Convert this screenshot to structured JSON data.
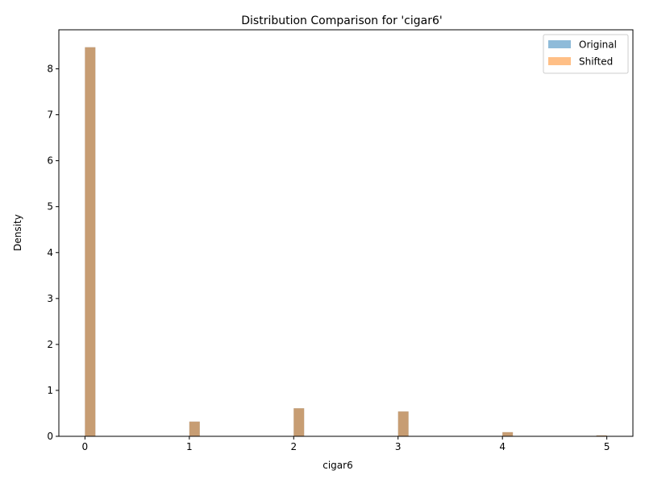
{
  "chart_data": {
    "type": "bar",
    "title": "Distribution Comparison for 'cigar6'",
    "xlabel": "cigar6",
    "ylabel": "Density",
    "xlim": [
      -0.25,
      5.25
    ],
    "ylim": [
      0,
      8.85
    ],
    "xticks": [
      0,
      1,
      2,
      3,
      4,
      5
    ],
    "yticks": [
      0,
      1,
      2,
      3,
      4,
      5,
      6,
      7,
      8
    ],
    "bin_width": 0.1,
    "legend_position": "top-right",
    "series": [
      {
        "name": "Original",
        "color": "#1f77b4",
        "opacity": 0.5,
        "bins": [
          {
            "x": 0.0,
            "density": 8.47
          },
          {
            "x": 1.0,
            "density": 0.32
          },
          {
            "x": 2.0,
            "density": 0.61
          },
          {
            "x": 3.0,
            "density": 0.54
          },
          {
            "x": 4.0,
            "density": 0.09
          },
          {
            "x": 4.9,
            "density": 0.02
          }
        ]
      },
      {
        "name": "Shifted",
        "color": "#ff7f0e",
        "opacity": 0.5,
        "bins": [
          {
            "x": 0.0,
            "density": 8.47
          },
          {
            "x": 1.0,
            "density": 0.32
          },
          {
            "x": 2.0,
            "density": 0.61
          },
          {
            "x": 3.0,
            "density": 0.54
          },
          {
            "x": 4.0,
            "density": 0.09
          },
          {
            "x": 4.9,
            "density": 0.02
          }
        ]
      }
    ]
  }
}
